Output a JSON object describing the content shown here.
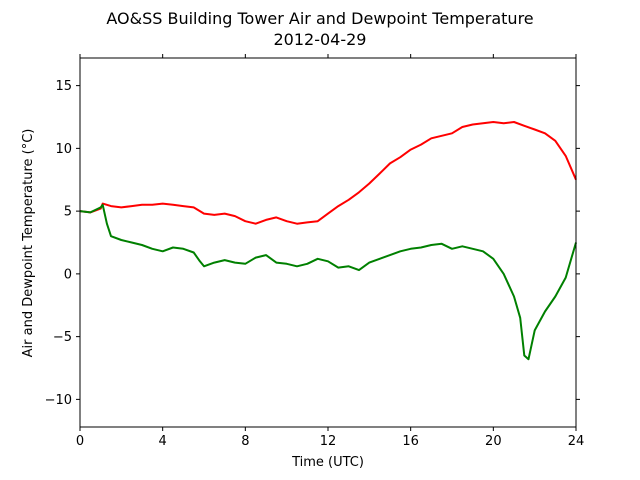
{
  "chart_data": {
    "type": "line",
    "title": "AO&SS Building Tower Air and Dewpoint Temperature",
    "subtitle": "2012-04-29",
    "xlabel": "Time (UTC)",
    "ylabel": "Air and Dewpoint Temperature (°C)",
    "xlim": [
      0,
      24
    ],
    "ylim": [
      -12.2,
      17.2
    ],
    "xticks": [
      0,
      4,
      8,
      12,
      16,
      20,
      24
    ],
    "yticks": [
      -10,
      -5,
      0,
      5,
      10,
      15
    ],
    "grid": false,
    "legend": "none",
    "series": [
      {
        "color": "#ff0000",
        "x": [
          0,
          0.5,
          1.0,
          1.1,
          1.5,
          2,
          2.5,
          3,
          3.5,
          4,
          4.5,
          5,
          5.5,
          5.8,
          6,
          6.5,
          7,
          7.5,
          8,
          8.5,
          9,
          9.5,
          10,
          10.5,
          11,
          11.5,
          12,
          12.5,
          13,
          13.5,
          14,
          14.5,
          15,
          15.5,
          16,
          16.5,
          17,
          17.5,
          18,
          18.5,
          19,
          19.5,
          20,
          20.5,
          21,
          21.5,
          22,
          22.5,
          23,
          23.5,
          24
        ],
        "y": [
          5.0,
          4.9,
          5.2,
          5.6,
          5.4,
          5.3,
          5.4,
          5.5,
          5.5,
          5.6,
          5.5,
          5.4,
          5.3,
          5.0,
          4.8,
          4.7,
          4.8,
          4.6,
          4.2,
          4.0,
          4.3,
          4.5,
          4.2,
          4.0,
          4.1,
          4.2,
          4.8,
          5.4,
          5.9,
          6.5,
          7.2,
          8.0,
          8.8,
          9.3,
          9.9,
          10.3,
          10.8,
          11.0,
          11.2,
          11.7,
          11.9,
          12.0,
          12.1,
          12.0,
          12.1,
          11.8,
          11.5,
          11.2,
          10.6,
          9.4,
          7.5
        ]
      },
      {
        "color": "#008000",
        "x": [
          0,
          0.5,
          1.0,
          1.1,
          1.3,
          1.5,
          2,
          2.5,
          3,
          3.5,
          4,
          4.5,
          5,
          5.5,
          5.8,
          6,
          6.5,
          7,
          7.5,
          8,
          8.5,
          9,
          9.5,
          10,
          10.5,
          11,
          11.5,
          12,
          12.5,
          13,
          13.5,
          14,
          14.5,
          15,
          15.5,
          16,
          16.5,
          17,
          17.5,
          18,
          18.5,
          19,
          19.5,
          20,
          20.5,
          21,
          21.3,
          21.5,
          21.7,
          22,
          22.5,
          23,
          23.5,
          24
        ],
        "y": [
          5.0,
          4.9,
          5.3,
          5.5,
          4.0,
          3.0,
          2.7,
          2.5,
          2.3,
          2.0,
          1.8,
          2.1,
          2.0,
          1.7,
          1.0,
          0.6,
          0.9,
          1.1,
          0.9,
          0.8,
          1.3,
          1.5,
          0.9,
          0.8,
          0.6,
          0.8,
          1.2,
          1.0,
          0.5,
          0.6,
          0.3,
          0.9,
          1.2,
          1.5,
          1.8,
          2.0,
          2.1,
          2.3,
          2.4,
          2.0,
          2.2,
          2.0,
          1.8,
          1.2,
          0.0,
          -1.8,
          -3.5,
          -6.5,
          -6.8,
          -4.5,
          -3.0,
          -1.8,
          -0.3,
          2.5
        ]
      }
    ]
  }
}
